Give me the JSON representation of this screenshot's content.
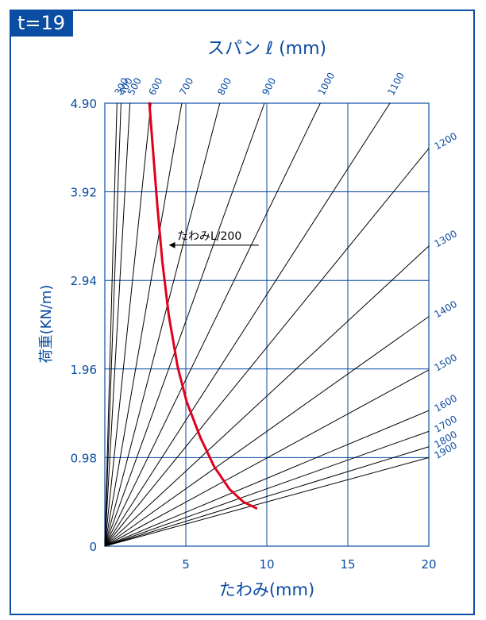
{
  "badge": "t=19",
  "colors": {
    "accent": "#0a4da2",
    "grid": "#0a4da2",
    "lines": "#000000",
    "curve": "#e0001b"
  },
  "chart_data": {
    "type": "line",
    "title": "スパン ℓ (mm)",
    "xlabel": "たわみ(mm)",
    "ylabel": "荷重(KN/m)",
    "xlim": [
      0,
      20
    ],
    "ylim": [
      0,
      4.9
    ],
    "xticks": [
      {
        "value": 5,
        "label": "5"
      },
      {
        "value": 10,
        "label": "10"
      },
      {
        "value": 15,
        "label": "15"
      },
      {
        "value": 20,
        "label": "20"
      }
    ],
    "yticks": [
      {
        "value": 0,
        "label": "0"
      },
      {
        "value": 0.98,
        "label": "0.98"
      },
      {
        "value": 1.96,
        "label": "1.96"
      },
      {
        "value": 2.94,
        "label": "2.94"
      },
      {
        "value": 3.92,
        "label": "3.92"
      },
      {
        "value": 4.9,
        "label": "4.90"
      }
    ],
    "grid": true,
    "span_lines": [
      {
        "label": "300",
        "deflection_at": [
          0.75,
          4.9
        ]
      },
      {
        "label": "400",
        "deflection_at": [
          1.0,
          4.9
        ]
      },
      {
        "label": "500",
        "deflection_at": [
          1.55,
          4.9
        ]
      },
      {
        "label": "600",
        "deflection_at": [
          2.85,
          4.9
        ]
      },
      {
        "label": "700",
        "deflection_at": [
          4.75,
          4.9
        ]
      },
      {
        "label": "800",
        "deflection_at": [
          7.1,
          4.9
        ]
      },
      {
        "label": "900",
        "deflection_at": [
          9.85,
          4.9
        ]
      },
      {
        "label": "1000",
        "deflection_at": [
          13.3,
          4.9
        ]
      },
      {
        "label": "1100",
        "deflection_at": [
          17.6,
          4.9
        ]
      },
      {
        "label": "1200",
        "deflection_at": [
          20,
          4.4
        ]
      },
      {
        "label": "1300",
        "deflection_at": [
          20,
          3.32
        ]
      },
      {
        "label": "1400",
        "deflection_at": [
          20,
          2.54
        ]
      },
      {
        "label": "1500",
        "deflection_at": [
          20,
          1.95
        ]
      },
      {
        "label": "1600",
        "deflection_at": [
          20,
          1.5
        ]
      },
      {
        "label": "1700",
        "deflection_at": [
          20,
          1.27
        ]
      },
      {
        "label": "1800",
        "deflection_at": [
          20,
          1.1
        ]
      },
      {
        "label": "1900",
        "deflection_at": [
          20,
          0.98
        ]
      }
    ],
    "limit_curve": {
      "name": "たわみL/200",
      "points": [
        [
          2.75,
          4.9
        ],
        [
          3.0,
          4.32
        ],
        [
          3.25,
          3.75
        ],
        [
          3.55,
          3.15
        ],
        [
          3.95,
          2.55
        ],
        [
          4.5,
          1.98
        ],
        [
          5.05,
          1.6
        ],
        [
          5.9,
          1.2
        ],
        [
          6.75,
          0.88
        ],
        [
          7.7,
          0.63
        ],
        [
          8.55,
          0.49
        ],
        [
          9.35,
          0.42
        ]
      ]
    },
    "annotation": {
      "text": "たわみL/200",
      "from": [
        9.5,
        3.33
      ],
      "to": [
        4.0,
        3.33
      ]
    }
  }
}
